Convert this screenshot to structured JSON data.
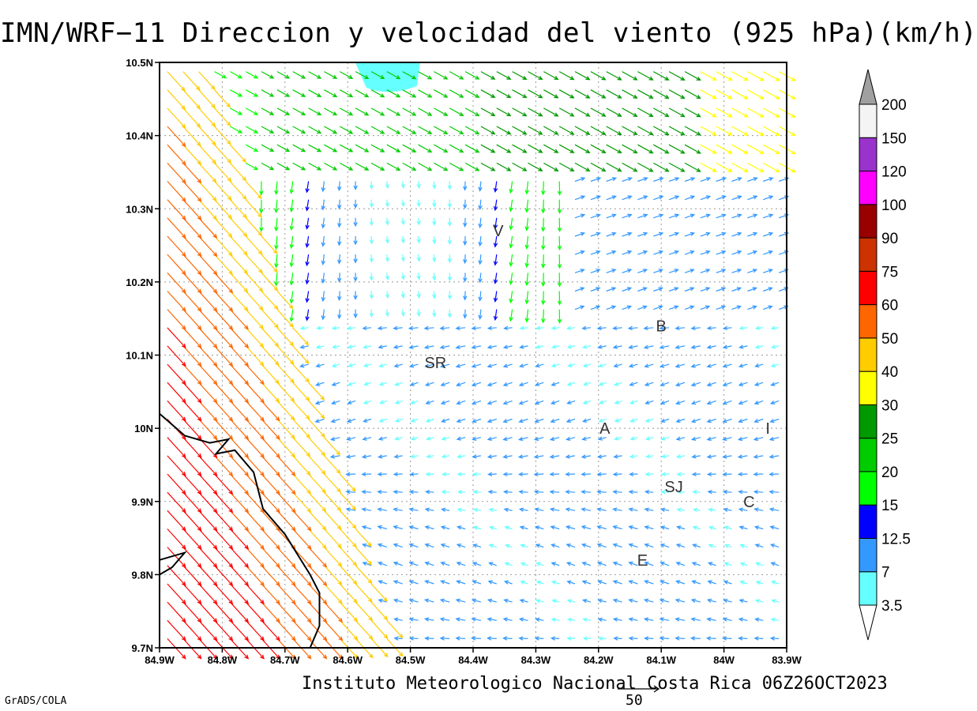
{
  "title": "IMN/WRF−11 Direccion y velocidad del viento (925 hPa)(km/h)",
  "footer": "Instituto Meteorologico Nacional Costa Rica 06Z26OCT2023",
  "credit": "GrADS/COLA",
  "reference_vector": {
    "label": "50",
    "value": 50
  },
  "map": {
    "lon_range": [
      -84.9,
      -83.9
    ],
    "lat_range": [
      9.7,
      10.5
    ],
    "grid": true,
    "x_ticks": [
      {
        "value": -84.9,
        "label": "84.9W"
      },
      {
        "value": -84.8,
        "label": "84.8W"
      },
      {
        "value": -84.7,
        "label": "84.7W"
      },
      {
        "value": -84.6,
        "label": "84.6W"
      },
      {
        "value": -84.5,
        "label": "84.5W"
      },
      {
        "value": -84.4,
        "label": "84.4W"
      },
      {
        "value": -84.3,
        "label": "84.3W"
      },
      {
        "value": -84.2,
        "label": "84.2W"
      },
      {
        "value": -84.1,
        "label": "84.1W"
      },
      {
        "value": -84.0,
        "label": "84W"
      },
      {
        "value": -83.9,
        "label": "83.9W"
      }
    ],
    "y_ticks": [
      {
        "value": 9.7,
        "label": "9.7N"
      },
      {
        "value": 9.8,
        "label": "9.8N"
      },
      {
        "value": 9.9,
        "label": "9.9N"
      },
      {
        "value": 10.0,
        "label": "10N"
      },
      {
        "value": 10.1,
        "label": "10.1N"
      },
      {
        "value": 10.2,
        "label": "10.2N"
      },
      {
        "value": 10.3,
        "label": "10.3N"
      },
      {
        "value": 10.4,
        "label": "10.4N"
      },
      {
        "value": 10.5,
        "label": "10.5N"
      }
    ],
    "cities": [
      {
        "label": "V",
        "lon": -84.36,
        "lat": 10.27
      },
      {
        "label": "SR",
        "lon": -84.46,
        "lat": 10.09
      },
      {
        "label": "B",
        "lon": -84.1,
        "lat": 10.14
      },
      {
        "label": "A",
        "lon": -84.19,
        "lat": 10.0
      },
      {
        "label": "I",
        "lon": -83.93,
        "lat": 10.0
      },
      {
        "label": "SJ",
        "lon": -84.08,
        "lat": 9.92
      },
      {
        "label": "C",
        "lon": -83.96,
        "lat": 9.9
      },
      {
        "label": "E",
        "lon": -84.13,
        "lat": 9.82
      }
    ],
    "coastline": [
      [
        -84.9,
        10.02
      ],
      [
        -84.86,
        9.99
      ],
      [
        -84.82,
        9.98
      ],
      [
        -84.79,
        9.985
      ],
      [
        -84.81,
        9.965
      ],
      [
        -84.78,
        9.97
      ],
      [
        -84.75,
        9.94
      ],
      [
        -84.735,
        9.89
      ],
      [
        -84.7,
        9.855
      ],
      [
        -84.66,
        9.8
      ],
      [
        -84.645,
        9.775
      ],
      [
        -84.645,
        9.73
      ],
      [
        -84.66,
        9.7
      ]
    ],
    "coastline_small": [
      [
        -84.9,
        9.82
      ],
      [
        -84.86,
        9.83
      ],
      [
        -84.88,
        9.81
      ],
      [
        -84.9,
        9.8
      ]
    ],
    "calm_patch": {
      "lon": -84.535,
      "lat": 10.485,
      "label_free": true
    }
  },
  "legend": {
    "bins": [
      {
        "label": "3.5",
        "color": "#66ffff"
      },
      {
        "label": "7",
        "color": "#3399ff"
      },
      {
        "label": "12.5",
        "color": "#0000ff"
      },
      {
        "label": "15",
        "color": "#00ff00"
      },
      {
        "label": "20",
        "color": "#00cc00"
      },
      {
        "label": "25",
        "color": "#009900"
      },
      {
        "label": "30",
        "color": "#ffff00"
      },
      {
        "label": "40",
        "color": "#ffcc00"
      },
      {
        "label": "50",
        "color": "#ff6600"
      },
      {
        "label": "60",
        "color": "#ff0000"
      },
      {
        "label": "75",
        "color": "#cc3300"
      },
      {
        "label": "90",
        "color": "#990000"
      },
      {
        "label": "100",
        "color": "#ff00ff"
      },
      {
        "label": "120",
        "color": "#9933cc"
      },
      {
        "label": "150",
        "color": "#f4f4f4"
      },
      {
        "label": "200",
        "color": "#a0a0a0"
      }
    ],
    "end_colors": {
      "low": "#ffffff",
      "high": "#a0a0a0"
    }
  }
}
